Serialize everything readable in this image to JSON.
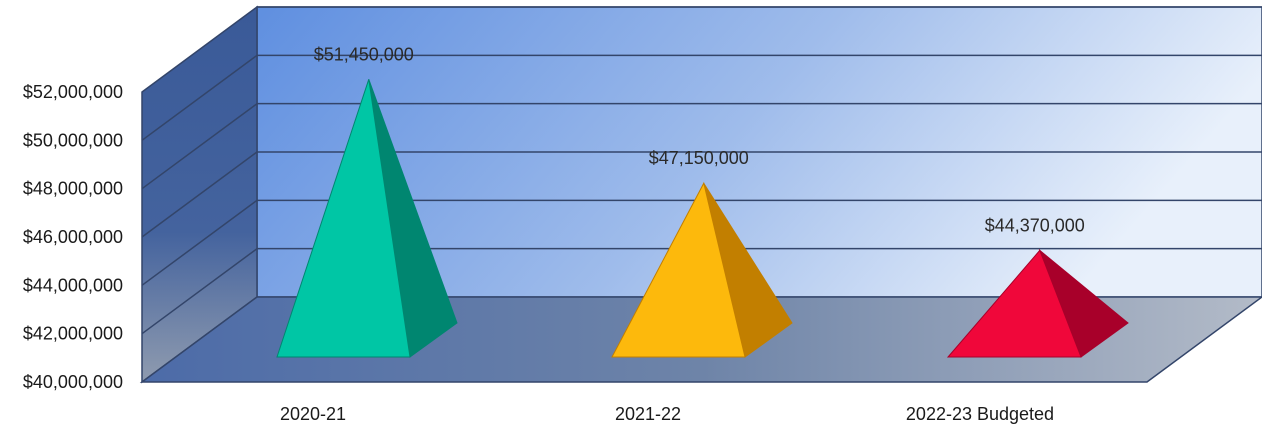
{
  "chart_data": {
    "type": "bar",
    "style": "3d-pyramid",
    "categories": [
      "2020-21",
      "2021-22",
      "2022-23 Budgeted"
    ],
    "series": [
      {
        "values": [
          51450000,
          47150000,
          44370000
        ]
      }
    ],
    "data_labels": [
      "$51,450,000",
      "$47,150,000",
      "$44,370,000"
    ],
    "bar_colors": [
      "#00C6A5",
      "#FDB90C",
      "#F0073A"
    ],
    "bar_shade_colors": [
      "#008670",
      "#C27F00",
      "#A8002A"
    ],
    "y_ticks": [
      40000000,
      42000000,
      44000000,
      46000000,
      48000000,
      50000000,
      52000000
    ],
    "y_tick_labels": [
      "$40,000,000",
      "$42,000,000",
      "$44,000,000",
      "$46,000,000",
      "$48,000,000",
      "$50,000,000",
      "$52,000,000"
    ],
    "ylim": [
      40000000,
      52000000
    ],
    "title": "",
    "xlabel": "",
    "ylabel": "",
    "grid": true,
    "legend": "none",
    "colors": {
      "back_wall_light": "#E6EEFA",
      "back_wall_dark": "#5F8FE0",
      "side_wall": "#3A5A95",
      "floor": "#4E6DA8",
      "gridline": "#33456A"
    }
  }
}
